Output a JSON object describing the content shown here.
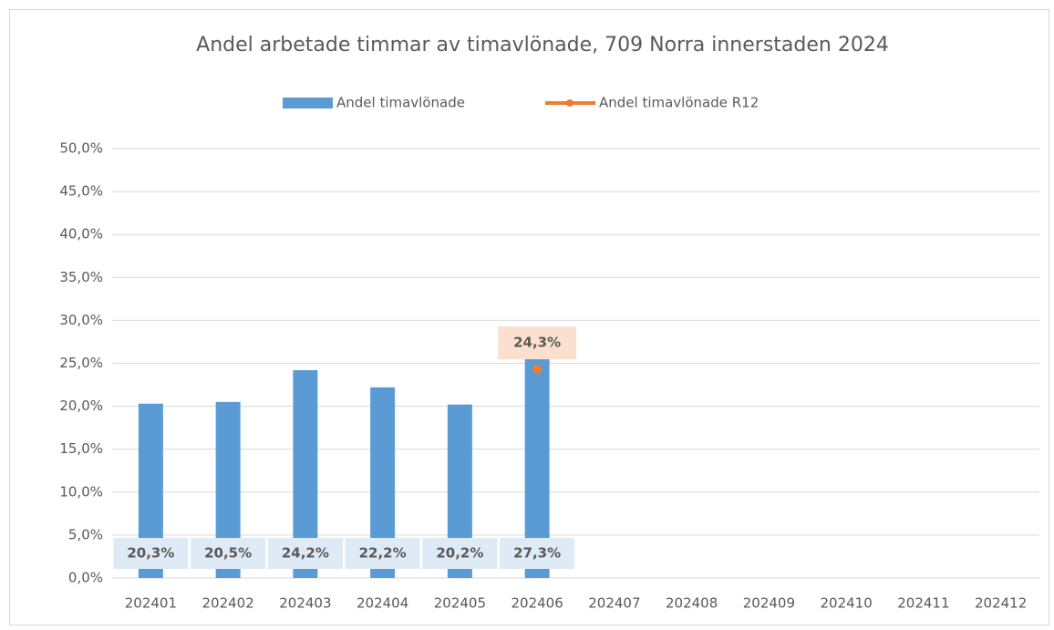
{
  "chart_data": {
    "type": "bar_line",
    "title": "Andel arbetade timmar av timavlönade, 709 Norra innerstaden 2024",
    "categories": [
      "202401",
      "202402",
      "202403",
      "202404",
      "202405",
      "202406",
      "202407",
      "202408",
      "202409",
      "202410",
      "202411",
      "202412"
    ],
    "series": [
      {
        "name": "Andel timavlönade",
        "type": "bar",
        "color": "#5b9bd5",
        "values": [
          20.3,
          20.5,
          24.2,
          22.2,
          20.2,
          27.3,
          null,
          null,
          null,
          null,
          null,
          null
        ],
        "value_labels": [
          "20,3%",
          "20,5%",
          "24,2%",
          "22,2%",
          "20,2%",
          "27,3%",
          null,
          null,
          null,
          null,
          null,
          null
        ]
      },
      {
        "name": "Andel timavlönade R12",
        "type": "line",
        "color": "#ed7d31",
        "values": [
          null,
          null,
          null,
          null,
          null,
          24.3,
          null,
          null,
          null,
          null,
          null,
          null
        ],
        "value_labels": [
          null,
          null,
          null,
          null,
          null,
          "24,3%",
          null,
          null,
          null,
          null,
          null,
          null
        ]
      }
    ],
    "ylim": [
      0,
      50
    ],
    "yticks": [
      {
        "value": 0,
        "label": "0,0%"
      },
      {
        "value": 5,
        "label": "5,0%"
      },
      {
        "value": 10,
        "label": "10,0%"
      },
      {
        "value": 15,
        "label": "15,0%"
      },
      {
        "value": 20,
        "label": "20,0%"
      },
      {
        "value": 25,
        "label": "25,0%"
      },
      {
        "value": 30,
        "label": "30,0%"
      },
      {
        "value": 35,
        "label": "35,0%"
      },
      {
        "value": 40,
        "label": "40,0%"
      },
      {
        "value": 45,
        "label": "45,0%"
      },
      {
        "value": 50,
        "label": "50,0%"
      }
    ],
    "grid": true,
    "legend": "top"
  }
}
